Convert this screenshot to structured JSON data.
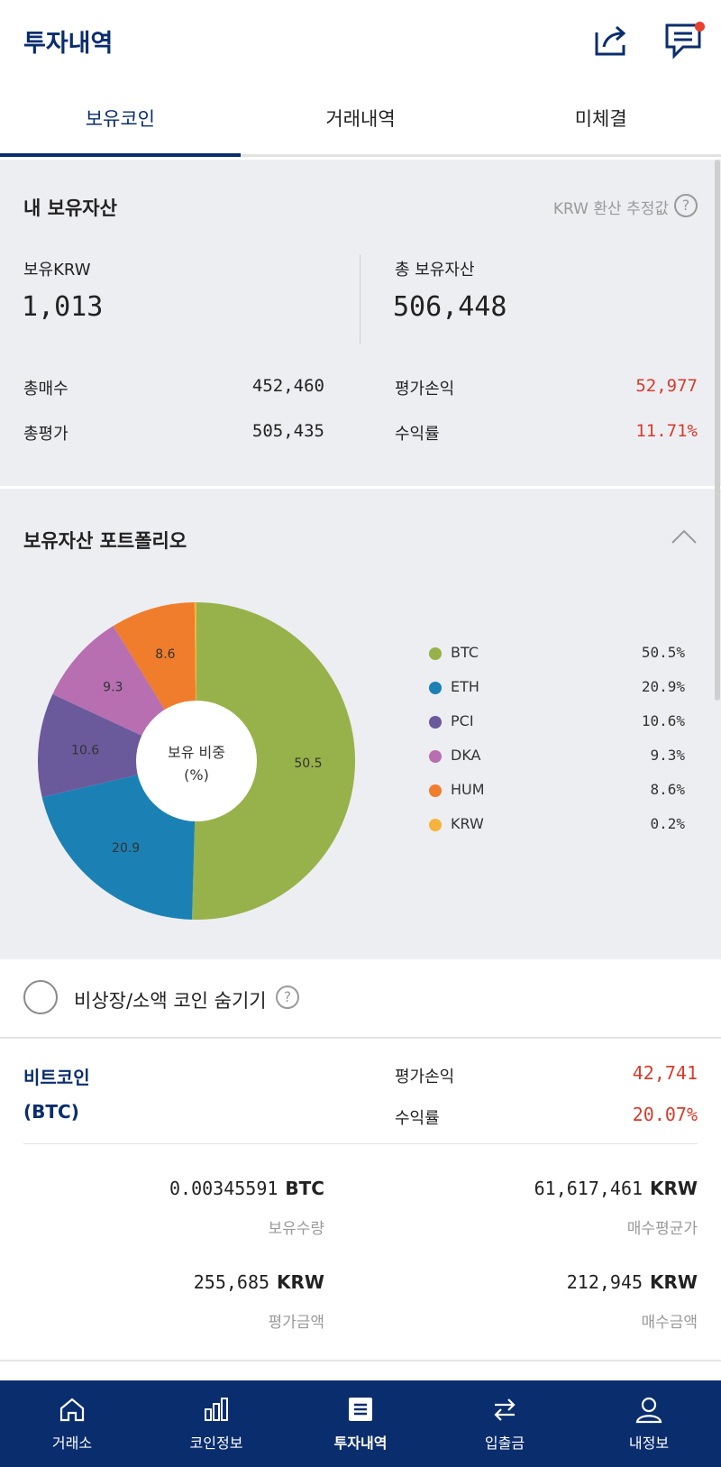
{
  "header": {
    "title": "투자내역"
  },
  "tabs": [
    {
      "label": "보유코인",
      "active": true
    },
    {
      "label": "거래내역",
      "active": false
    },
    {
      "label": "미체결",
      "active": false
    }
  ],
  "assets": {
    "title": "내 보유자산",
    "estimate_note": "KRW 환산 추정값",
    "help": "?",
    "krw_label": "보유KRW",
    "krw_value": "1,013",
    "total_label": "총 보유자산",
    "total_value": "506,448",
    "buy_label": "총매수",
    "buy_value": "452,460",
    "eval_label": "총평가",
    "eval_value": "505,435",
    "pnl_label": "평가손익",
    "pnl_value": "52,977",
    "rate_label": "수익률",
    "rate_value": "11.71%"
  },
  "portfolio": {
    "title": "보유자산 포트폴리오",
    "center_label": "보유 비중",
    "center_unit": "(%)"
  },
  "chart_data": {
    "type": "pie",
    "title": "",
    "categories": [
      "BTC",
      "ETH",
      "PCI",
      "DKA",
      "HUM",
      "KRW"
    ],
    "values": [
      50.5,
      20.9,
      10.6,
      9.3,
      8.6,
      0.2
    ],
    "value_labels": [
      "50.5",
      "20.9",
      "10.6",
      "9.3",
      "8.6",
      ""
    ],
    "legend_values": [
      "50.5%",
      "20.9%",
      "10.6%",
      "9.3%",
      "8.6%",
      "0.2%"
    ],
    "colors": [
      "#97b24a",
      "#1b81b4",
      "#6a5a9c",
      "#b76fb1",
      "#ef7d2c",
      "#f6b33c"
    ],
    "legend_placement": "right",
    "donut": true
  },
  "hide_row": {
    "label": "비상장/소액 코인 숨기기",
    "help": "?"
  },
  "coin": {
    "name_line1": "비트코인",
    "name_line2": "(BTC)",
    "pnl_label": "평가손익",
    "pnl_value": "42,741",
    "rate_label": "수익률",
    "rate_value": "20.07%",
    "holding_value": "0.00345591",
    "holding_unit": "BTC",
    "holding_label": "보유수량",
    "avg_price_value": "61,617,461",
    "avg_price_unit": "KRW",
    "avg_price_label": "매수평균가",
    "eval_amount_value": "255,685",
    "eval_amount_unit": "KRW",
    "eval_amount_label": "평가금액",
    "buy_amount_value": "212,945",
    "buy_amount_unit": "KRW",
    "buy_amount_label": "매수금액"
  },
  "nav": [
    {
      "label": "거래소",
      "icon": "home-icon",
      "active": false
    },
    {
      "label": "코인정보",
      "icon": "bar-chart-icon",
      "active": false
    },
    {
      "label": "투자내역",
      "icon": "list-icon",
      "active": true
    },
    {
      "label": "입출금",
      "icon": "transfer-icon",
      "active": false
    },
    {
      "label": "내정보",
      "icon": "user-icon",
      "active": false
    }
  ]
}
